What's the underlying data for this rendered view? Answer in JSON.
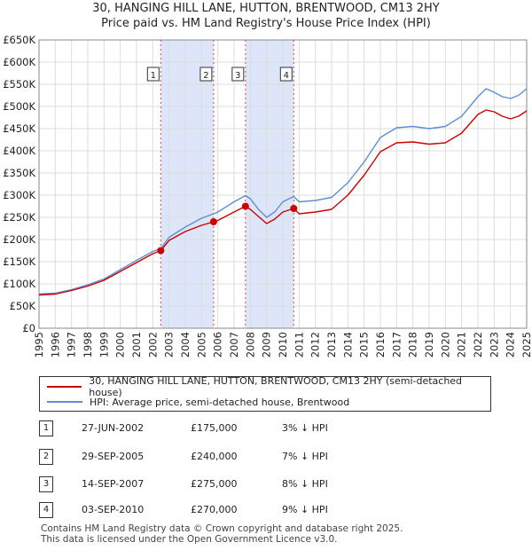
{
  "colors": {
    "property": "#cc0000",
    "hpi": "#5b8ed6",
    "shade": "#dde6f8",
    "vline": "#dd4444"
  },
  "legend": {
    "property_label": "30, HANGING HILL LANE, HUTTON, BRENTWOOD, CM13 2HY (semi-detached house)",
    "hpi_label": "HPI: Average price, semi-detached house, Brentwood"
  },
  "transactions": [
    {
      "num": "1",
      "date": "27-JUN-2002",
      "price": "£175,000",
      "hpi_diff": "3% ↓ HPI"
    },
    {
      "num": "2",
      "date": "29-SEP-2005",
      "price": "£240,000",
      "hpi_diff": "7% ↓ HPI"
    },
    {
      "num": "3",
      "date": "14-SEP-2007",
      "price": "£275,000",
      "hpi_diff": "8% ↓ HPI"
    },
    {
      "num": "4",
      "date": "03-SEP-2010",
      "price": "£270,000",
      "hpi_diff": "9% ↓ HPI"
    }
  ],
  "footer": {
    "line1": "Contains HM Land Registry data © Crown copyright and database right 2025.",
    "line2": "This data is licensed under the Open Government Licence v3.0."
  },
  "chart_data": {
    "type": "line",
    "title": "30, HANGING HILL LANE, HUTTON, BRENTWOOD, CM13 2HY",
    "subtitle": "Price paid vs. HM Land Registry's House Price Index (HPI)",
    "xlim": [
      1995,
      2025
    ],
    "ylim": [
      0,
      650000
    ],
    "x_ticks": [
      1995,
      1996,
      1997,
      1998,
      1999,
      2000,
      2001,
      2002,
      2003,
      2004,
      2005,
      2006,
      2007,
      2008,
      2009,
      2010,
      2011,
      2012,
      2013,
      2014,
      2015,
      2016,
      2017,
      2018,
      2019,
      2020,
      2021,
      2022,
      2023,
      2024,
      2025
    ],
    "x_tick_labels": [
      "1995",
      "1996",
      "1997",
      "1998",
      "1999",
      "2000",
      "2001",
      "2002",
      "2003",
      "2004",
      "2005",
      "2006",
      "2007",
      "2008",
      "2009",
      "2010",
      "2011",
      "2012",
      "2013",
      "2014",
      "2015",
      "2016",
      "2017",
      "2018",
      "2019",
      "2020",
      "2021",
      "2022",
      "2023",
      "2024",
      "2025"
    ],
    "y_ticks": [
      0,
      50000,
      100000,
      150000,
      200000,
      250000,
      300000,
      350000,
      400000,
      450000,
      500000,
      550000,
      600000,
      650000
    ],
    "y_tick_labels": [
      "£0",
      "£50K",
      "£100K",
      "£150K",
      "£200K",
      "£250K",
      "£300K",
      "£350K",
      "£400K",
      "£450K",
      "£500K",
      "£550K",
      "£600K",
      "£650K"
    ],
    "shaded_periods": [
      [
        2002.49,
        2005.74
      ],
      [
        2007.7,
        2010.67
      ]
    ],
    "series": [
      {
        "name": "30, HANGING HILL LANE, HUTTON, BRENTWOOD, CM13 2HY (semi-detached house)",
        "x": [
          1995,
          1996,
          1997,
          1998,
          1999,
          2000,
          2001,
          2002,
          2002.49,
          2003,
          2004,
          2005,
          2005.74,
          2006,
          2007,
          2007.7,
          2008,
          2008.5,
          2009,
          2009.5,
          2010,
          2010.67,
          2011,
          2012,
          2013,
          2014,
          2015,
          2016,
          2017,
          2018,
          2019,
          2020,
          2021,
          2022,
          2022.5,
          2023,
          2023.5,
          2024,
          2024.5,
          2025
        ],
        "values": [
          75000,
          77000,
          85000,
          95000,
          108000,
          128000,
          148000,
          168000,
          175000,
          198000,
          218000,
          232000,
          240000,
          243000,
          262000,
          275000,
          268000,
          252000,
          236000,
          246000,
          262000,
          270000,
          258000,
          262000,
          268000,
          300000,
          345000,
          398000,
          418000,
          420000,
          415000,
          418000,
          440000,
          482000,
          492000,
          488000,
          478000,
          472000,
          478000,
          490000
        ]
      },
      {
        "name": "HPI: Average price, semi-detached house, Brentwood",
        "x": [
          1995,
          1996,
          1997,
          1998,
          1999,
          2000,
          2001,
          2002,
          2002.49,
          2003,
          2004,
          2005,
          2005.74,
          2006,
          2007,
          2007.7,
          2008,
          2008.5,
          2009,
          2009.5,
          2010,
          2010.67,
          2011,
          2012,
          2013,
          2014,
          2015,
          2016,
          2017,
          2018,
          2019,
          2020,
          2021,
          2022,
          2022.5,
          2023,
          2023.5,
          2024,
          2024.5,
          2025
        ],
        "values": [
          77000,
          79000,
          87000,
          98000,
          111000,
          132000,
          153000,
          173000,
          180000,
          205000,
          228000,
          248000,
          258000,
          262000,
          285000,
          299000,
          292000,
          268000,
          250000,
          262000,
          285000,
          297000,
          285000,
          288000,
          295000,
          328000,
          375000,
          430000,
          452000,
          455000,
          450000,
          455000,
          478000,
          522000,
          540000,
          532000,
          522000,
          518000,
          525000,
          540000
        ]
      }
    ],
    "sales": [
      {
        "label": "1",
        "x": 2002.49,
        "y": 175000
      },
      {
        "label": "2",
        "x": 2005.74,
        "y": 240000
      },
      {
        "label": "3",
        "x": 2007.7,
        "y": 275000
      },
      {
        "label": "4",
        "x": 2010.67,
        "y": 270000
      }
    ]
  }
}
